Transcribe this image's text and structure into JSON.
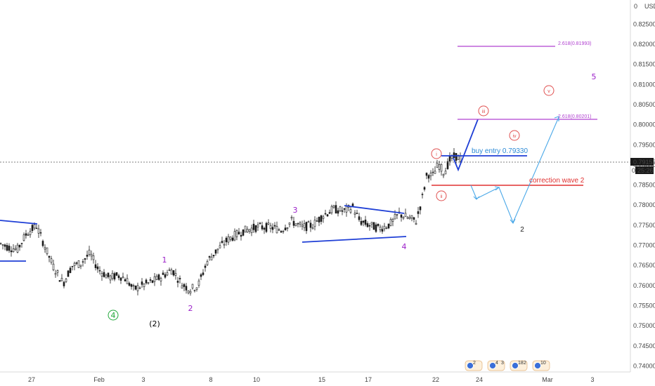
{
  "header": {
    "currency_label": "USD"
  },
  "price_tag": {
    "price": "0.79153",
    "countdown": "25:26",
    "partial_digit": "0"
  },
  "chart_data": {
    "type": "candlestick",
    "y_ticks": [
      "0.82500",
      "0.82000",
      "0.81500",
      "0.81000",
      "0.80500",
      "0.80000",
      "0.79500",
      "0.79000",
      "0.78500",
      "0.78000",
      "0.77500",
      "0.77000",
      "0.76500",
      "0.76000",
      "0.75500",
      "0.75000",
      "0.74500",
      "0.74000"
    ],
    "ylim": [
      0.7385,
      0.831
    ],
    "x_ticks": [
      "27",
      "Feb",
      "3",
      "8",
      "10",
      "15",
      "17",
      "22",
      "24",
      "Mar",
      "3"
    ],
    "current_price": 0.79153,
    "grid": false,
    "wave_labels": [
      {
        "text": "4",
        "color": "#22a83a",
        "circled": true
      },
      {
        "text": "(2)",
        "color": "#000000",
        "circled": false
      },
      {
        "text": "1",
        "color": "#9b1fc9",
        "circled": false
      },
      {
        "text": "2",
        "color": "#9b1fc9",
        "circled": false
      },
      {
        "text": "3",
        "color": "#9b1fc9",
        "circled": false
      },
      {
        "text": "4",
        "color": "#9b1fc9",
        "circled": false
      },
      {
        "text": "5",
        "color": "#9b1fc9",
        "circled": false
      },
      {
        "text": "i",
        "color": "#e05050",
        "circled": true
      },
      {
        "text": "ii",
        "color": "#e05050",
        "circled": true
      },
      {
        "text": "iii",
        "color": "#e05050",
        "circled": true
      },
      {
        "text": "iv",
        "color": "#e05050",
        "circled": true
      },
      {
        "text": "v",
        "color": "#e05050",
        "circled": true
      },
      {
        "text": "2",
        "color": "#222222",
        "circled": false
      }
    ],
    "annotations": [
      {
        "text": "buy entry 0.79330",
        "price": 0.7933,
        "color": "#2b8ad6"
      },
      {
        "text": "correction wave 2",
        "price": 0.7855,
        "color": "#e03030"
      },
      {
        "text": "2.618(0.81993)",
        "price": 0.81993,
        "color": "#b040d0"
      },
      {
        "text": "2.618(0.80201)",
        "price": 0.80201,
        "color": "#b040d0"
      }
    ],
    "event_badges": [
      "2",
      "4",
      "3",
      "18",
      "2",
      "10"
    ]
  },
  "colors": {
    "blue": "#1f3fd6",
    "light_blue": "#4aa8e8",
    "red": "#e03030",
    "purple": "#b040d0",
    "candle": "#1a1a1a"
  }
}
